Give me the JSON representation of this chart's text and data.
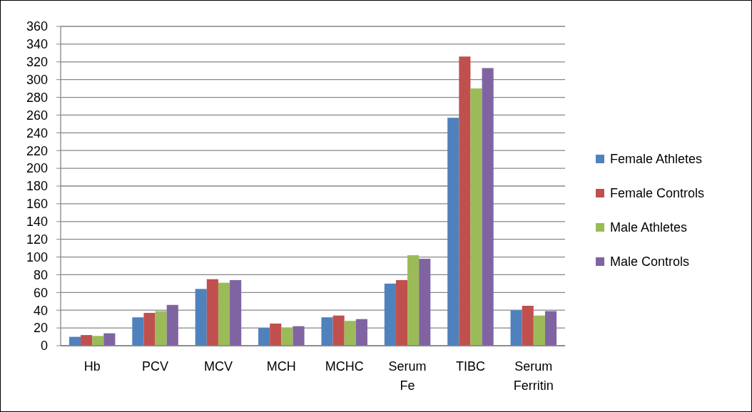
{
  "chart_data": {
    "type": "bar",
    "categories": [
      "Hb",
      "PCV",
      "MCV",
      "MCH",
      "MCHC",
      "Serum Fe",
      "TIBC",
      "Serum Ferritin"
    ],
    "series": [
      {
        "name": "Female Athletes",
        "color": "#4f81bd",
        "values": [
          10,
          32,
          64,
          20,
          32,
          70,
          257,
          40
        ]
      },
      {
        "name": "Female Controls",
        "color": "#c0504d",
        "values": [
          12,
          37,
          75,
          25,
          34,
          74,
          326,
          45
        ]
      },
      {
        "name": "Male Athletes",
        "color": "#9bbb59",
        "values": [
          11,
          39,
          71,
          20,
          28,
          102,
          290,
          34
        ]
      },
      {
        "name": "Male Controls",
        "color": "#8064a2",
        "values": [
          14,
          46,
          74,
          22,
          30,
          98,
          313,
          39
        ]
      }
    ],
    "ylim": [
      0,
      360
    ],
    "yticks": [
      0,
      20,
      40,
      60,
      80,
      100,
      120,
      140,
      160,
      180,
      200,
      220,
      240,
      260,
      280,
      300,
      320,
      340,
      360
    ],
    "grid": "y",
    "legend": "right"
  }
}
